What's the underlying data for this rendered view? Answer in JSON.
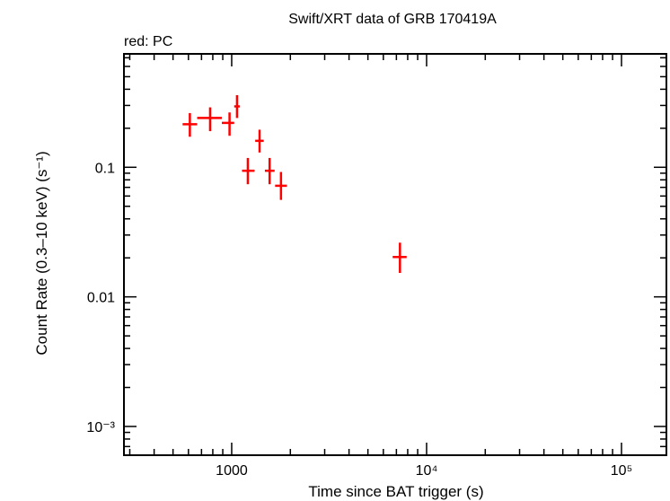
{
  "chart_data": {
    "type": "scatter",
    "title": "Swift/XRT data of GRB 170419A",
    "subtitle": "red: PC",
    "xlabel": "Time since BAT trigger (s)",
    "ylabel": "Count Rate (0.3–10 keV) (s⁻¹)",
    "x_scale": "log",
    "y_scale": "log",
    "xlim": [
      280,
      170000
    ],
    "ylim": [
      0.0006,
      0.75
    ],
    "grid": false,
    "x_ticks": [
      {
        "value": 1000,
        "label": "1000"
      },
      {
        "value": 10000,
        "label": "10⁴"
      },
      {
        "value": 100000,
        "label": "10⁵"
      }
    ],
    "y_ticks": [
      {
        "value": 0.1,
        "label": "0.1"
      },
      {
        "value": 0.01,
        "label": "0.01"
      },
      {
        "value": 0.001,
        "label": "10⁻³"
      }
    ],
    "series": [
      {
        "color": "#ff0000",
        "points": [
          {
            "x": 610,
            "xerr": [
              560,
              665
            ],
            "y": 0.215,
            "yerr": [
              0.172,
              0.262
            ]
          },
          {
            "x": 775,
            "xerr": [
              665,
              890
            ],
            "y": 0.24,
            "yerr": [
              0.19,
              0.29
            ]
          },
          {
            "x": 975,
            "xerr": [
              890,
              1030
            ],
            "y": 0.22,
            "yerr": [
              0.175,
              0.265
            ]
          },
          {
            "x": 1065,
            "xerr": [
              1030,
              1100
            ],
            "y": 0.295,
            "yerr": [
              0.24,
              0.36
            ]
          },
          {
            "x": 1210,
            "xerr": [
              1130,
              1310
            ],
            "y": 0.094,
            "yerr": [
              0.074,
              0.118
            ]
          },
          {
            "x": 1390,
            "xerr": [
              1320,
              1460
            ],
            "y": 0.16,
            "yerr": [
              0.13,
              0.195
            ]
          },
          {
            "x": 1565,
            "xerr": [
              1480,
              1660
            ],
            "y": 0.094,
            "yerr": [
              0.074,
              0.118
            ]
          },
          {
            "x": 1790,
            "xerr": [
              1670,
              1920
            ],
            "y": 0.072,
            "yerr": [
              0.056,
              0.092
            ]
          },
          {
            "x": 7300,
            "xerr": [
              6700,
              7900
            ],
            "y": 0.0203,
            "yerr": [
              0.0153,
              0.0262
            ]
          }
        ]
      }
    ]
  }
}
